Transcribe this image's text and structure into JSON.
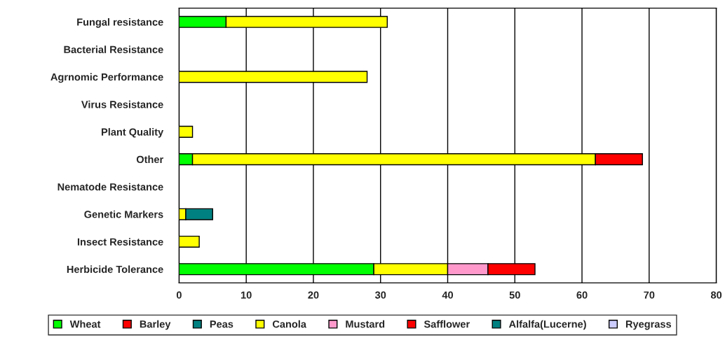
{
  "chart_data": {
    "type": "bar",
    "orientation": "horizontal",
    "stacked": true,
    "categories": [
      "Fungal resistance",
      "Bacterial Resistance",
      "Agrnomic Performance",
      "Virus Resistance",
      "Plant Quality",
      "Other",
      "Nematode Resistance",
      "Genetic Markers",
      "Insect Resistance",
      "Herbicide Tolerance"
    ],
    "series": [
      {
        "name": "Wheat",
        "color": "#00ff00",
        "values": [
          7,
          null,
          null,
          null,
          null,
          2,
          null,
          null,
          null,
          29
        ]
      },
      {
        "name": "Barley",
        "color": "#ff0000",
        "values": [
          null,
          null,
          null,
          null,
          null,
          null,
          null,
          null,
          null,
          null
        ]
      },
      {
        "name": "Peas",
        "color": "#008080",
        "values": [
          null,
          null,
          null,
          null,
          null,
          null,
          null,
          null,
          null,
          null
        ]
      },
      {
        "name": "Canola",
        "color": "#ffff00",
        "values": [
          24,
          null,
          28,
          null,
          2,
          60,
          null,
          1,
          3,
          11
        ]
      },
      {
        "name": "Mustard",
        "color": "#ff99cc",
        "values": [
          null,
          null,
          null,
          null,
          null,
          null,
          null,
          null,
          null,
          6
        ]
      },
      {
        "name": "Safflower",
        "color": "#ff0000",
        "values": [
          null,
          null,
          null,
          null,
          null,
          7,
          null,
          null,
          null,
          7
        ]
      },
      {
        "name": "Alfalfa(Lucerne)",
        "color": "#008080",
        "values": [
          null,
          null,
          null,
          null,
          null,
          null,
          null,
          4,
          null,
          null
        ]
      },
      {
        "name": "Ryegrass",
        "color": "#ccccff",
        "values": [
          null,
          null,
          null,
          null,
          null,
          null,
          null,
          null,
          null,
          null
        ]
      }
    ],
    "xlim": [
      0,
      80
    ],
    "xticks": [
      0,
      10,
      20,
      30,
      40,
      50,
      60,
      70,
      80
    ],
    "grid": "x",
    "legend": "bottom"
  }
}
